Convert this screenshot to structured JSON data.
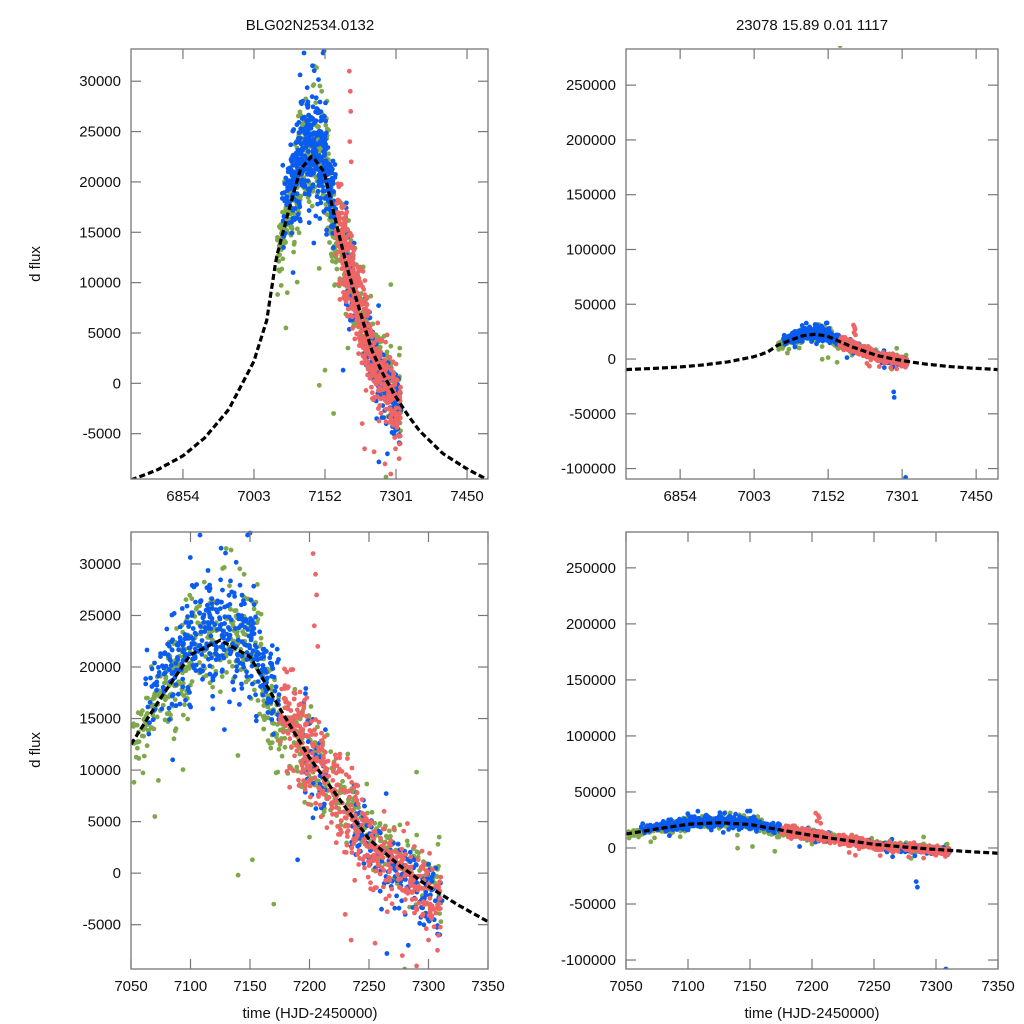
{
  "figure": {
    "left_title": "BLG02N2534.0132",
    "right_title": "23078  15.89  0.01  1117",
    "ylabel": "d flux",
    "xlabel": "time (HJD-2450000)"
  },
  "colors": {
    "green": "#7ea84a",
    "blue": "#0a5cf0",
    "red": "#ee6565",
    "model": "#000000",
    "frame": "#777777"
  },
  "chart_data": [
    {
      "id": "top-left",
      "type": "scatter",
      "title": "BLG02N2534.0132",
      "xlabel": "",
      "ylabel": "d flux",
      "xlim": [
        6745,
        7494
      ],
      "ylim": [
        -9500,
        33200
      ],
      "xticks": [
        6854,
        7003,
        7152,
        7301,
        7450
      ],
      "yticks": [
        -5000,
        0,
        5000,
        10000,
        15000,
        20000,
        25000,
        30000
      ],
      "xtick_labels": [
        "6854",
        "7003",
        "7152",
        "7301",
        "7450"
      ],
      "ytick_labels": [
        "-5000",
        "0",
        "5000",
        "10000",
        "15000",
        "20000",
        "25000",
        "30000"
      ],
      "grid": false,
      "legend": "none"
    },
    {
      "id": "top-right",
      "type": "scatter",
      "title": "23078  15.89  0.01  1117",
      "xlabel": "",
      "ylabel": "",
      "xlim": [
        6745,
        7494
      ],
      "ylim": [
        -109500,
        283000
      ],
      "xticks": [
        6854,
        7003,
        7152,
        7301,
        7450
      ],
      "yticks": [
        -100000,
        -50000,
        0,
        50000,
        100000,
        150000,
        200000,
        250000
      ],
      "xtick_labels": [
        "6854",
        "7003",
        "7152",
        "7301",
        "7450"
      ],
      "ytick_labels": [
        "-100000",
        "-50000",
        "0",
        "50000",
        "100000",
        "150000",
        "200000",
        "250000"
      ],
      "grid": false,
      "legend": "none"
    },
    {
      "id": "bottom-left",
      "type": "scatter",
      "title": "",
      "xlabel": "time (HJD-2450000)",
      "ylabel": "d flux",
      "xlim": [
        7050,
        7350
      ],
      "ylim": [
        -9300,
        33100
      ],
      "xticks": [
        7050,
        7100,
        7150,
        7200,
        7250,
        7300,
        7350
      ],
      "yticks": [
        -5000,
        0,
        5000,
        10000,
        15000,
        20000,
        25000,
        30000
      ],
      "xtick_labels": [
        "7050",
        "7100",
        "7150",
        "7200",
        "7250",
        "7300",
        "7350"
      ],
      "ytick_labels": [
        "-5000",
        "0",
        "5000",
        "10000",
        "15000",
        "20000",
        "25000",
        "30000"
      ],
      "grid": false,
      "legend": "none"
    },
    {
      "id": "bottom-right",
      "type": "scatter",
      "title": "",
      "xlabel": "time (HJD-2450000)",
      "ylabel": "",
      "xlim": [
        7050,
        7350
      ],
      "ylim": [
        -108000,
        282000
      ],
      "xticks": [
        7050,
        7100,
        7150,
        7200,
        7250,
        7300,
        7350
      ],
      "yticks": [
        -100000,
        -50000,
        0,
        50000,
        100000,
        150000,
        200000,
        250000
      ],
      "xtick_labels": [
        "7050",
        "7100",
        "7150",
        "7200",
        "7250",
        "7300",
        "7350"
      ],
      "ytick_labels": [
        "-100000",
        "-50000",
        "0",
        "50000",
        "100000",
        "150000",
        "200000",
        "250000"
      ],
      "grid": false,
      "legend": "none"
    }
  ],
  "model_curve": {
    "description": "dashed black microlensing model, d flux vs time",
    "points": [
      [
        6745,
        -9600
      ],
      [
        6800,
        -8600
      ],
      [
        6854,
        -7200
      ],
      [
        6900,
        -5400
      ],
      [
        6950,
        -2600
      ],
      [
        7003,
        2200
      ],
      [
        7030,
        6300
      ],
      [
        7050,
        12500
      ],
      [
        7075,
        17000
      ],
      [
        7100,
        21200
      ],
      [
        7125,
        22600
      ],
      [
        7150,
        21000
      ],
      [
        7175,
        16000
      ],
      [
        7200,
        11200
      ],
      [
        7225,
        7200
      ],
      [
        7250,
        3300
      ],
      [
        7275,
        800
      ],
      [
        7300,
        -1300
      ],
      [
        7325,
        -3100
      ],
      [
        7350,
        -4700
      ],
      [
        7400,
        -7000
      ],
      [
        7450,
        -8500
      ],
      [
        7494,
        -9600
      ]
    ]
  },
  "observations": {
    "description": "photometry points from three observatories, sampled as clusters (time range, flux center, spread)",
    "series": [
      {
        "name": "green",
        "color_key": "green",
        "clusters": [
          [
            7052,
            7078,
            0,
            1500,
            60
          ],
          [
            7078,
            7100,
            0,
            2500,
            90
          ],
          [
            7100,
            7160,
            1500,
            2800,
            160
          ],
          [
            7160,
            7185,
            -1500,
            2000,
            80
          ],
          [
            7185,
            7215,
            0,
            2200,
            80
          ],
          [
            7215,
            7260,
            500,
            1800,
            90
          ],
          [
            7260,
            7312,
            700,
            1600,
            90
          ]
        ],
        "outliers": [
          [
            7070,
            5500
          ],
          [
            7073,
            9000
          ],
          [
            7140,
            -200
          ],
          [
            7170,
            -3000
          ],
          [
            7152,
            1300
          ],
          [
            7200,
            3500
          ],
          [
            7290,
            9800
          ],
          [
            7309,
            3500
          ],
          [
            7308,
            2800
          ],
          [
            7280,
            -9300
          ],
          [
            7240,
            6800
          ],
          [
            7118,
            26000
          ],
          [
            7130,
            31500
          ],
          [
            7145,
            29000
          ],
          [
            7176,
            286000
          ]
        ]
      },
      {
        "name": "blue",
        "color_key": "blue",
        "clusters": [
          [
            7062,
            7082,
            2500,
            2200,
            40
          ],
          [
            7082,
            7112,
            1200,
            2600,
            120
          ],
          [
            7112,
            7160,
            1200,
            2500,
            190
          ],
          [
            7160,
            7175,
            800,
            2000,
            50
          ],
          [
            7195,
            7215,
            0,
            2500,
            40
          ],
          [
            7235,
            7262,
            -500,
            2000,
            60
          ],
          [
            7262,
            7312,
            -1000,
            2000,
            110
          ]
        ],
        "outliers": [
          [
            7108,
            32800
          ],
          [
            7148,
            32800
          ],
          [
            7150,
            33000
          ],
          [
            7065,
            13500
          ],
          [
            7085,
            11000
          ],
          [
            7190,
            1300
          ],
          [
            7283,
            -7000
          ],
          [
            7265,
            -7800
          ],
          [
            7308,
            -108000
          ],
          [
            7285,
            -35000
          ],
          [
            7284,
            -30000
          ]
        ]
      },
      {
        "name": "red",
        "color_key": "red",
        "clusters": [
          [
            7175,
            7195,
            800,
            2200,
            90
          ],
          [
            7195,
            7215,
            500,
            2600,
            90
          ],
          [
            7215,
            7245,
            0,
            2200,
            110
          ],
          [
            7245,
            7275,
            -500,
            1800,
            100
          ],
          [
            7275,
            7312,
            -500,
            1600,
            110
          ]
        ],
        "outliers": [
          [
            7203,
            31000
          ],
          [
            7205,
            29000
          ],
          [
            7206,
            27000
          ],
          [
            7204,
            24000
          ],
          [
            7207,
            22000
          ],
          [
            7230,
            -4000
          ],
          [
            7235,
            -6500
          ],
          [
            7255,
            -6800
          ],
          [
            7278,
            -8000
          ],
          [
            7290,
            -9000
          ],
          [
            7240,
            7800
          ],
          [
            7300,
            -6500
          ]
        ]
      }
    ]
  }
}
